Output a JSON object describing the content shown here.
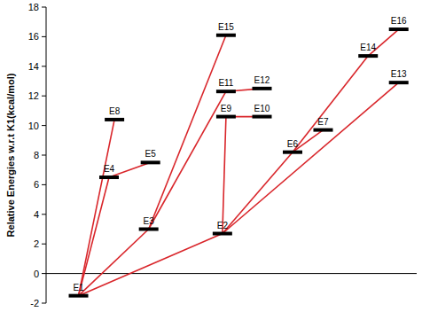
{
  "chart_data": {
    "type": "energy_diagram",
    "y_label": "Relative Energies w.r.t K1(kcal/mol)",
    "names": [
      "E1",
      "E2",
      "E3",
      "E4",
      "E5",
      "E6",
      "E7",
      "E8",
      "E9",
      "E10",
      "E11",
      "E12",
      "E13",
      "E14",
      "E15",
      "E16"
    ],
    "x": [
      0.9,
      4.9,
      2.85,
      1.75,
      2.9,
      6.85,
      7.7,
      1.9,
      5.0,
      6.0,
      5.0,
      6.0,
      9.8,
      8.95,
      5.0,
      9.8
    ],
    "values": [
      -1.5,
      2.7,
      3.0,
      6.5,
      7.5,
      8.2,
      9.7,
      10.4,
      10.6,
      10.6,
      12.3,
      12.5,
      12.9,
      14.7,
      16.1,
      16.5
    ],
    "links": [
      [
        "E1",
        "E8"
      ],
      [
        "E1",
        "E4"
      ],
      [
        "E4",
        "E5"
      ],
      [
        "E1",
        "E3"
      ],
      [
        "E1",
        "E2"
      ],
      [
        "E3",
        "E15"
      ],
      [
        "E3",
        "E11"
      ],
      [
        "E11",
        "E12"
      ],
      [
        "E2",
        "E9"
      ],
      [
        "E9",
        "E10"
      ],
      [
        "E2",
        "E6"
      ],
      [
        "E6",
        "E7"
      ],
      [
        "E6",
        "E14"
      ],
      [
        "E14",
        "E16"
      ],
      [
        "E2",
        "E13"
      ]
    ],
    "color": "#d9262b",
    "xlim": [
      0,
      10.3
    ],
    "ylim": [
      -2,
      18
    ],
    "yticks": [
      -2,
      0,
      2,
      4,
      6,
      8,
      10,
      12,
      14,
      16,
      18
    ],
    "tick_labels": "y"
  }
}
